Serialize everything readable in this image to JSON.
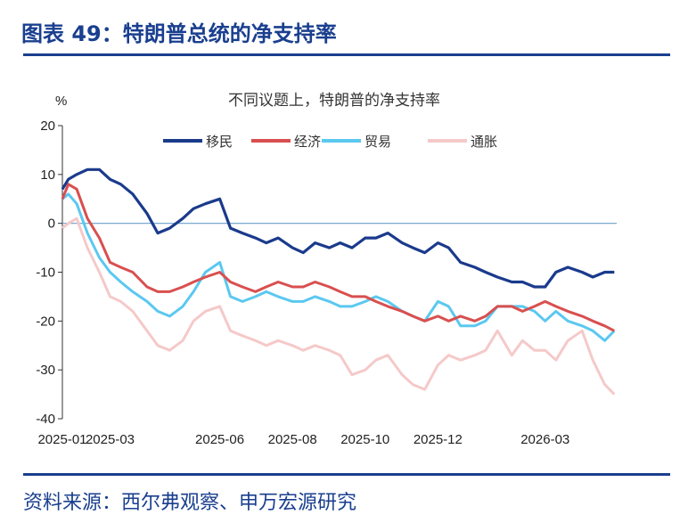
{
  "figure": {
    "title": "图表 49：特朗普总统的净支持率",
    "source": "资料来源：西尔弗观察、申万宏源研究"
  },
  "chart_data": {
    "type": "line",
    "title": "不同议题上，特朗普的净支持率",
    "ylabel": "%",
    "ylim": [
      -40,
      20
    ],
    "yticks": [
      20,
      10,
      0,
      -10,
      -20,
      -30,
      -40
    ],
    "xlim": [
      "2025-01-20",
      "2026-04-30"
    ],
    "xticks": [
      "2025-01",
      "2025-03",
      "2025-06",
      "2025-08",
      "2025-10",
      "2025-12",
      "2026-03"
    ],
    "legend_position": "top",
    "grid": false,
    "x": [
      "2025-01-20",
      "2025-01-25",
      "2025-02-01",
      "2025-02-10",
      "2025-02-20",
      "2025-03-01",
      "2025-03-10",
      "2025-03-20",
      "2025-04-01",
      "2025-04-10",
      "2025-04-20",
      "2025-05-01",
      "2025-05-10",
      "2025-05-20",
      "2025-06-01",
      "2025-06-10",
      "2025-06-20",
      "2025-07-01",
      "2025-07-10",
      "2025-07-20",
      "2025-08-01",
      "2025-08-10",
      "2025-08-20",
      "2025-09-01",
      "2025-09-10",
      "2025-09-20",
      "2025-10-01",
      "2025-10-10",
      "2025-10-20",
      "2025-11-01",
      "2025-11-10",
      "2025-11-20",
      "2025-12-01",
      "2025-12-10",
      "2025-12-20",
      "2026-01-01",
      "2026-01-10",
      "2026-01-20",
      "2026-02-01",
      "2026-02-10",
      "2026-02-20",
      "2026-03-01",
      "2026-03-10",
      "2026-03-20",
      "2026-04-01",
      "2026-04-10",
      "2026-04-20",
      "2026-04-28"
    ],
    "series": [
      {
        "name": "移民",
        "color": "#1a3a8c",
        "values": [
          7,
          9,
          10,
          11,
          11,
          9,
          8,
          6,
          2,
          -2,
          -1,
          1,
          3,
          4,
          5,
          -1,
          -2,
          -3,
          -4,
          -3,
          -5,
          -6,
          -4,
          -5,
          -4,
          -5,
          -3,
          -3,
          -2,
          -4,
          -5,
          -6,
          -4,
          -5,
          -8,
          -9,
          -10,
          -11,
          -12,
          -12,
          -13,
          -13,
          -10,
          -9,
          -10,
          -11,
          -10,
          -10
        ]
      },
      {
        "name": "经济",
        "color": "#d94f4f",
        "values": [
          5,
          8,
          7,
          1,
          -3,
          -8,
          -9,
          -10,
          -13,
          -14,
          -14,
          -13,
          -12,
          -11,
          -10,
          -12,
          -13,
          -14,
          -13,
          -12,
          -13,
          -13,
          -12,
          -13,
          -14,
          -15,
          -15,
          -16,
          -17,
          -18,
          -19,
          -20,
          -19,
          -20,
          -19,
          -20,
          -19,
          -17,
          -17,
          -18,
          -17,
          -16,
          -17,
          -18,
          -19,
          -20,
          -21,
          -22
        ]
      },
      {
        "name": "贸易",
        "color": "#5bc8f0",
        "values": [
          5,
          6,
          4,
          -2,
          -7,
          -10,
          -12,
          -14,
          -16,
          -18,
          -19,
          -17,
          -14,
          -10,
          -8,
          -15,
          -16,
          -15,
          -14,
          -15,
          -16,
          -16,
          -15,
          -16,
          -17,
          -17,
          -16,
          -15,
          -16,
          -18,
          -19,
          -20,
          -16,
          -17,
          -21,
          -21,
          -20,
          -17,
          -17,
          -17,
          -18,
          -20,
          -18,
          -20,
          -21,
          -22,
          -24,
          -22
        ]
      },
      {
        "name": "通胀",
        "color": "#f5c9c9",
        "values": [
          -1,
          0,
          1,
          -5,
          -10,
          -15,
          -16,
          -18,
          -22,
          -25,
          -26,
          -24,
          -20,
          -18,
          -17,
          -22,
          -23,
          -24,
          -25,
          -24,
          -25,
          -26,
          -25,
          -26,
          -27,
          -31,
          -30,
          -28,
          -27,
          -31,
          -33,
          -34,
          -29,
          -27,
          -28,
          -27,
          -26,
          -22,
          -27,
          -24,
          -26,
          -26,
          -28,
          -24,
          -22,
          -28,
          -33,
          -35
        ]
      }
    ]
  }
}
